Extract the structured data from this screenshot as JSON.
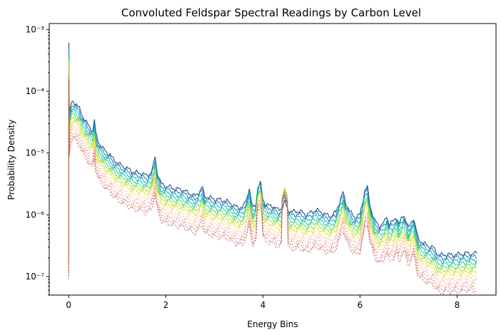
{
  "chart_data": {
    "type": "line",
    "title": "Convoluted Feldspar Spectral Readings by Carbon Level",
    "xlabel": "Energy Bins",
    "ylabel": "Probability Density",
    "y_scale": "log",
    "xlim": [
      -0.4,
      8.8
    ],
    "ylim": [
      5e-08,
      0.00125
    ],
    "x_ticks": [
      0,
      2,
      4,
      6,
      8
    ],
    "x_tick_labels": [
      "0",
      "2",
      "4",
      "6",
      "8"
    ],
    "y_ticks": [
      1e-07,
      1e-06,
      1e-05,
      0.0001,
      0.001
    ],
    "y_tick_labels": [
      "10⁻⁷",
      "10⁻⁶",
      "10⁻⁵",
      "10⁻⁴",
      "10⁻³"
    ],
    "grid": false,
    "legend": "none",
    "x_range": [
      0,
      8.4
    ],
    "colors": [
      "#08306b",
      "#0b6db3",
      "#00a6c8",
      "#19c59b",
      "#55d765",
      "#9ae33a",
      "#d9e51f",
      "#f7c942",
      "#f8a87a",
      "#ef8f7a",
      "#e07070",
      "#c84d4d",
      "#b03232"
    ],
    "baseline": [
      [
        0.0,
        3e-07
      ],
      [
        0.004,
        0.0006
      ],
      [
        0.015,
        3.5e-05
      ],
      [
        0.03,
        5e-05
      ],
      [
        0.06,
        6.5e-05
      ],
      [
        0.1,
        6.8e-05
      ],
      [
        0.15,
        6.3e-05
      ],
      [
        0.22,
        5.2e-05
      ],
      [
        0.3,
        3.8e-05
      ],
      [
        0.38,
        3e-05
      ],
      [
        0.45,
        2.5e-05
      ],
      [
        0.5,
        2.3e-05
      ],
      [
        0.53,
        3.5e-05
      ],
      [
        0.56,
        2e-05
      ],
      [
        0.62,
        1.5e-05
      ],
      [
        0.7,
        1.2e-05
      ],
      [
        0.8,
        1e-05
      ],
      [
        0.85,
        9.5e-06
      ],
      [
        0.9,
        8.2e-06
      ],
      [
        1.0,
        7e-06
      ],
      [
        1.1,
        6.2e-06
      ],
      [
        1.2,
        5.7e-06
      ],
      [
        1.3,
        5e-06
      ],
      [
        1.4,
        4.8e-06
      ],
      [
        1.5,
        4.7e-06
      ],
      [
        1.6,
        4.3e-06
      ],
      [
        1.7,
        4.8e-06
      ],
      [
        1.75,
        6.5e-06
      ],
      [
        1.78,
        9e-06
      ],
      [
        1.82,
        5e-06
      ],
      [
        1.9,
        3.2e-06
      ],
      [
        2.0,
        2.9e-06
      ],
      [
        2.1,
        2.8e-06
      ],
      [
        2.2,
        2.6e-06
      ],
      [
        2.3,
        2.6e-06
      ],
      [
        2.4,
        2.4e-06
      ],
      [
        2.5,
        2.2e-06
      ],
      [
        2.6,
        2e-06
      ],
      [
        2.7,
        2.4e-06
      ],
      [
        2.75,
        2.8e-06
      ],
      [
        2.8,
        2e-06
      ],
      [
        2.9,
        1.9e-06
      ],
      [
        3.0,
        1.8e-06
      ],
      [
        3.1,
        1.75e-06
      ],
      [
        3.2,
        1.7e-06
      ],
      [
        3.3,
        1.6e-06
      ],
      [
        3.4,
        1.4e-06
      ],
      [
        3.5,
        1.3e-06
      ],
      [
        3.6,
        1.35e-06
      ],
      [
        3.68,
        2e-06
      ],
      [
        3.72,
        2.8e-06
      ],
      [
        3.76,
        1.6e-06
      ],
      [
        3.8,
        1.3e-06
      ],
      [
        3.85,
        1.5e-06
      ],
      [
        3.9,
        2.8e-06
      ],
      [
        3.95,
        3.2e-06
      ],
      [
        4.0,
        1.8e-06
      ],
      [
        4.05,
        1.5e-06
      ],
      [
        4.1,
        1.4e-06
      ],
      [
        4.2,
        1.4e-06
      ],
      [
        4.3,
        1.2e-06
      ],
      [
        4.4,
        1.3e-06
      ],
      [
        4.45,
        1.6e-06
      ],
      [
        4.48,
        1.4e-06
      ],
      [
        4.52,
        1.2e-06
      ],
      [
        4.6,
        1.1e-06
      ],
      [
        4.7,
        1.15e-06
      ],
      [
        4.8,
        1.1e-06
      ],
      [
        4.9,
        1e-06
      ],
      [
        5.0,
        1.1e-06
      ],
      [
        5.1,
        1.2e-06
      ],
      [
        5.2,
        1.1e-06
      ],
      [
        5.3,
        1e-06
      ],
      [
        5.4,
        9.5e-07
      ],
      [
        5.5,
        1.1e-06
      ],
      [
        5.6,
        1.8e-06
      ],
      [
        5.65,
        2.3e-06
      ],
      [
        5.7,
        1.6e-06
      ],
      [
        5.8,
        1.1e-06
      ],
      [
        5.9,
        9e-07
      ],
      [
        6.0,
        1e-06
      ],
      [
        6.1,
        2.5e-06
      ],
      [
        6.15,
        2.8e-06
      ],
      [
        6.2,
        1.5e-06
      ],
      [
        6.3,
        8e-07
      ],
      [
        6.4,
        6.5e-07
      ],
      [
        6.5,
        7.5e-07
      ],
      [
        6.55,
        9.5e-07
      ],
      [
        6.6,
        7e-07
      ],
      [
        6.7,
        8e-07
      ],
      [
        6.75,
        9.5e-07
      ],
      [
        6.8,
        7e-07
      ],
      [
        6.9,
        1e-06
      ],
      [
        6.95,
        8e-07
      ],
      [
        7.0,
        6e-07
      ],
      [
        7.1,
        9e-07
      ],
      [
        7.15,
        6e-07
      ],
      [
        7.2,
        4e-07
      ],
      [
        7.3,
        3.5e-07
      ],
      [
        7.4,
        3.1e-07
      ],
      [
        7.5,
        3e-07
      ],
      [
        7.55,
        2.6e-07
      ],
      [
        7.6,
        2.3e-07
      ],
      [
        7.7,
        2.2e-07
      ],
      [
        7.8,
        2.3e-07
      ],
      [
        7.9,
        2.2e-07
      ],
      [
        8.0,
        2.3e-07
      ],
      [
        8.1,
        2.3e-07
      ],
      [
        8.2,
        2.4e-07
      ],
      [
        8.3,
        2.3e-07
      ],
      [
        8.4,
        2.4e-07
      ]
    ]
  }
}
